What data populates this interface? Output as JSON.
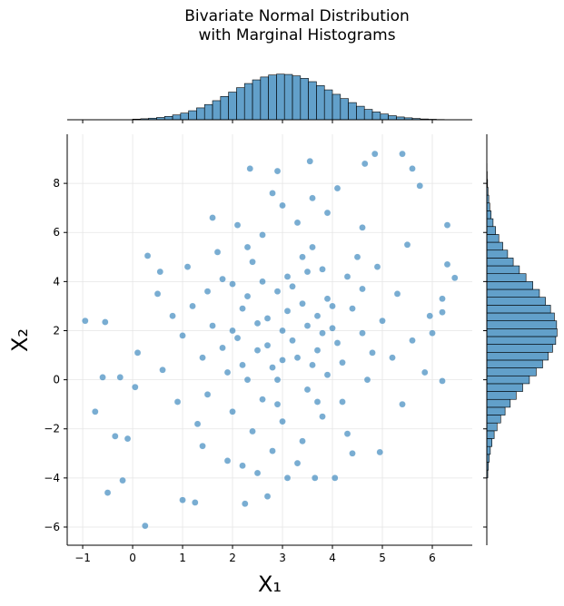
{
  "chart_data": [
    {
      "type": "scatter",
      "title": "Bivariate Normal Distribution\nwith Marginal Histograms",
      "xlabel": "X₁",
      "ylabel": "X₂",
      "series": [
        {
          "color": "#1f77b4",
          "x": [
            -0.95,
            -0.55,
            -0.75,
            -0.5,
            -0.2,
            0.25,
            -0.35,
            -0.1,
            1.0,
            1.25,
            2.25,
            2.7,
            4.05,
            3.65,
            4.95,
            6.2,
            6.45,
            6.3,
            5.4,
            4.85,
            4.65,
            3.55,
            2.35,
            2.9,
            5.6,
            5.75,
            6.3,
            6.2,
            6.2,
            0.3,
            0.55,
            -0.25,
            -0.6,
            0.05,
            0.1,
            6.0,
            5.95,
            5.85,
            5.4,
            3.0,
            2.5,
            3.4,
            2.8,
            3.7,
            2.2,
            3.1,
            1.9,
            4.1,
            2.6,
            3.3,
            2.9,
            3.8,
            2.1,
            4.4,
            1.6,
            3.5,
            2.4,
            3.9,
            2.7,
            3.2,
            1.4,
            4.6,
            2.0,
            3.6,
            2.3,
            4.2,
            3.0,
            1.8,
            4.8,
            2.6,
            3.4,
            1.2,
            4.5,
            2.9,
            3.7,
            2.2,
            3.1,
            2.5,
            3.9,
            1.5,
            4.3,
            2.8,
            3.3,
            1.0,
            5.0,
            2.4,
            3.8,
            1.7,
            4.9,
            2.0,
            3.5,
            2.7,
            3.2,
            4.0,
            2.3,
            3.6,
            1.3,
            4.7,
            2.1,
            3.0,
            3.9,
            1.9,
            4.3,
            2.5,
            3.3,
            0.8,
            5.3,
            0.9,
            5.2,
            1.1,
            4.6,
            2.8,
            3.6,
            0.6,
            5.5,
            1.6,
            4.1,
            2.2,
            3.1,
            0.5,
            5.6,
            1.4,
            4.4,
            3.4,
            2.6,
            3.8,
            2.0,
            4.0,
            3.0,
            2.3,
            3.7,
            1.8,
            4.2,
            2.9,
            3.5,
            1.5,
            4.6
          ],
          "y": [
            2.4,
            2.35,
            -1.3,
            -4.6,
            -4.1,
            -5.95,
            -2.3,
            -2.4,
            -4.9,
            -5.0,
            -5.05,
            -4.75,
            -4.0,
            -4.0,
            -2.95,
            -0.05,
            4.15,
            6.3,
            9.2,
            9.2,
            8.8,
            8.9,
            8.6,
            8.5,
            8.6,
            7.9,
            4.7,
            3.3,
            2.75,
            5.05,
            4.4,
            0.1,
            0.1,
            -0.3,
            1.1,
            1.9,
            2.6,
            0.3,
            -1.0,
            2.0,
            1.2,
            3.1,
            0.5,
            2.6,
            2.9,
            4.2,
            0.3,
            1.5,
            -0.8,
            0.9,
            3.6,
            4.5,
            1.7,
            2.9,
            2.2,
            -0.4,
            4.8,
            0.2,
            2.5,
            1.6,
            0.9,
            3.7,
            -1.3,
            5.4,
            3.4,
            -0.9,
            -1.7,
            4.1,
            1.1,
            5.9,
            -2.5,
            3.0,
            5.0,
            0.0,
            1.2,
            0.6,
            2.8,
            2.3,
            3.3,
            -0.6,
            4.2,
            -2.9,
            6.4,
            1.8,
            2.4,
            -2.1,
            -1.5,
            5.2,
            4.6,
            3.9,
            2.2,
            1.4,
            3.8,
            2.1,
            0.0,
            0.6,
            -1.8,
            0.0,
            6.3,
            7.1,
            6.8,
            -3.3,
            -2.2,
            -3.8,
            -3.4,
            2.6,
            3.5,
            -0.9,
            0.9,
            4.6,
            6.2,
            7.6,
            7.4,
            0.4,
            5.5,
            6.6,
            7.8,
            -3.5,
            -4.0,
            3.5,
            1.6,
            -2.7,
            -3.0,
            5.0,
            4.0,
            1.9,
            2.0,
            3.0,
            0.8,
            5.4,
            -0.9,
            1.3,
            0.7,
            -1.0,
            4.4,
            3.6,
            1.9
          ]
        }
      ],
      "xlim": [
        -1.31,
        6.8
      ],
      "ylim": [
        -6.74,
        10
      ],
      "xticks": [
        {
          "value": -1,
          "label": "−1"
        },
        0,
        1,
        2,
        3,
        4,
        5,
        6
      ],
      "yticks": [
        {
          "value": -6,
          "label": "−6"
        },
        {
          "value": -4,
          "label": "−4"
        },
        {
          "value": -2,
          "label": "−2"
        },
        0,
        2,
        4,
        6,
        8
      ],
      "grid": true
    },
    {
      "type": "histogram",
      "orientation": "vertical",
      "color": "#1f77b4",
      "bins": [
        0,
        0.16,
        0.32,
        0.48,
        0.64,
        0.8,
        0.96,
        1.12,
        1.28,
        1.44,
        1.6,
        1.76,
        1.92,
        2.08,
        2.24,
        2.4,
        2.56,
        2.72,
        2.88,
        3.04,
        3.2,
        3.36,
        3.52,
        3.68,
        3.84,
        4,
        4.16,
        4.32,
        4.48,
        4.64,
        4.8,
        4.96,
        5.12,
        5.28,
        5.44,
        5.6,
        5.76,
        5.92,
        6.08,
        6.24,
        6.4
      ],
      "counts": [
        9,
        14,
        22,
        32,
        47,
        67,
        93,
        126,
        166,
        213,
        267,
        326,
        387,
        449,
        507,
        558,
        598,
        626,
        638,
        634,
        614,
        579,
        533,
        478,
        418,
        356,
        296,
        240,
        189,
        145,
        109,
        80,
        57,
        39,
        27,
        18,
        11,
        7,
        4,
        2
      ],
      "ylim": [
        0,
        660
      ]
    },
    {
      "type": "histogram",
      "orientation": "horizontal",
      "color": "#1f77b4",
      "bins": [
        -4,
        -3.68,
        -3.36,
        -3.04,
        -2.72,
        -2.4,
        -2.08,
        -1.76,
        -1.44,
        -1.12,
        -0.8,
        -0.48,
        -0.16,
        0.16,
        0.48,
        0.8,
        1.12,
        1.44,
        1.76,
        2.08,
        2.4,
        2.72,
        3.04,
        3.36,
        3.68,
        4,
        4.32,
        4.64,
        4.96,
        5.28,
        5.6,
        5.92,
        6.24,
        6.56,
        6.88,
        7.2,
        7.52,
        7.84,
        8.16,
        8.48,
        8.8
      ],
      "counts": [
        9,
        14,
        22,
        32,
        47,
        67,
        93,
        126,
        166,
        213,
        267,
        326,
        387,
        449,
        507,
        558,
        598,
        626,
        638,
        634,
        614,
        579,
        533,
        478,
        418,
        356,
        296,
        240,
        189,
        145,
        109,
        80,
        57,
        39,
        27,
        18,
        11,
        7,
        4,
        2
      ],
      "xlim": [
        0,
        660
      ]
    }
  ]
}
